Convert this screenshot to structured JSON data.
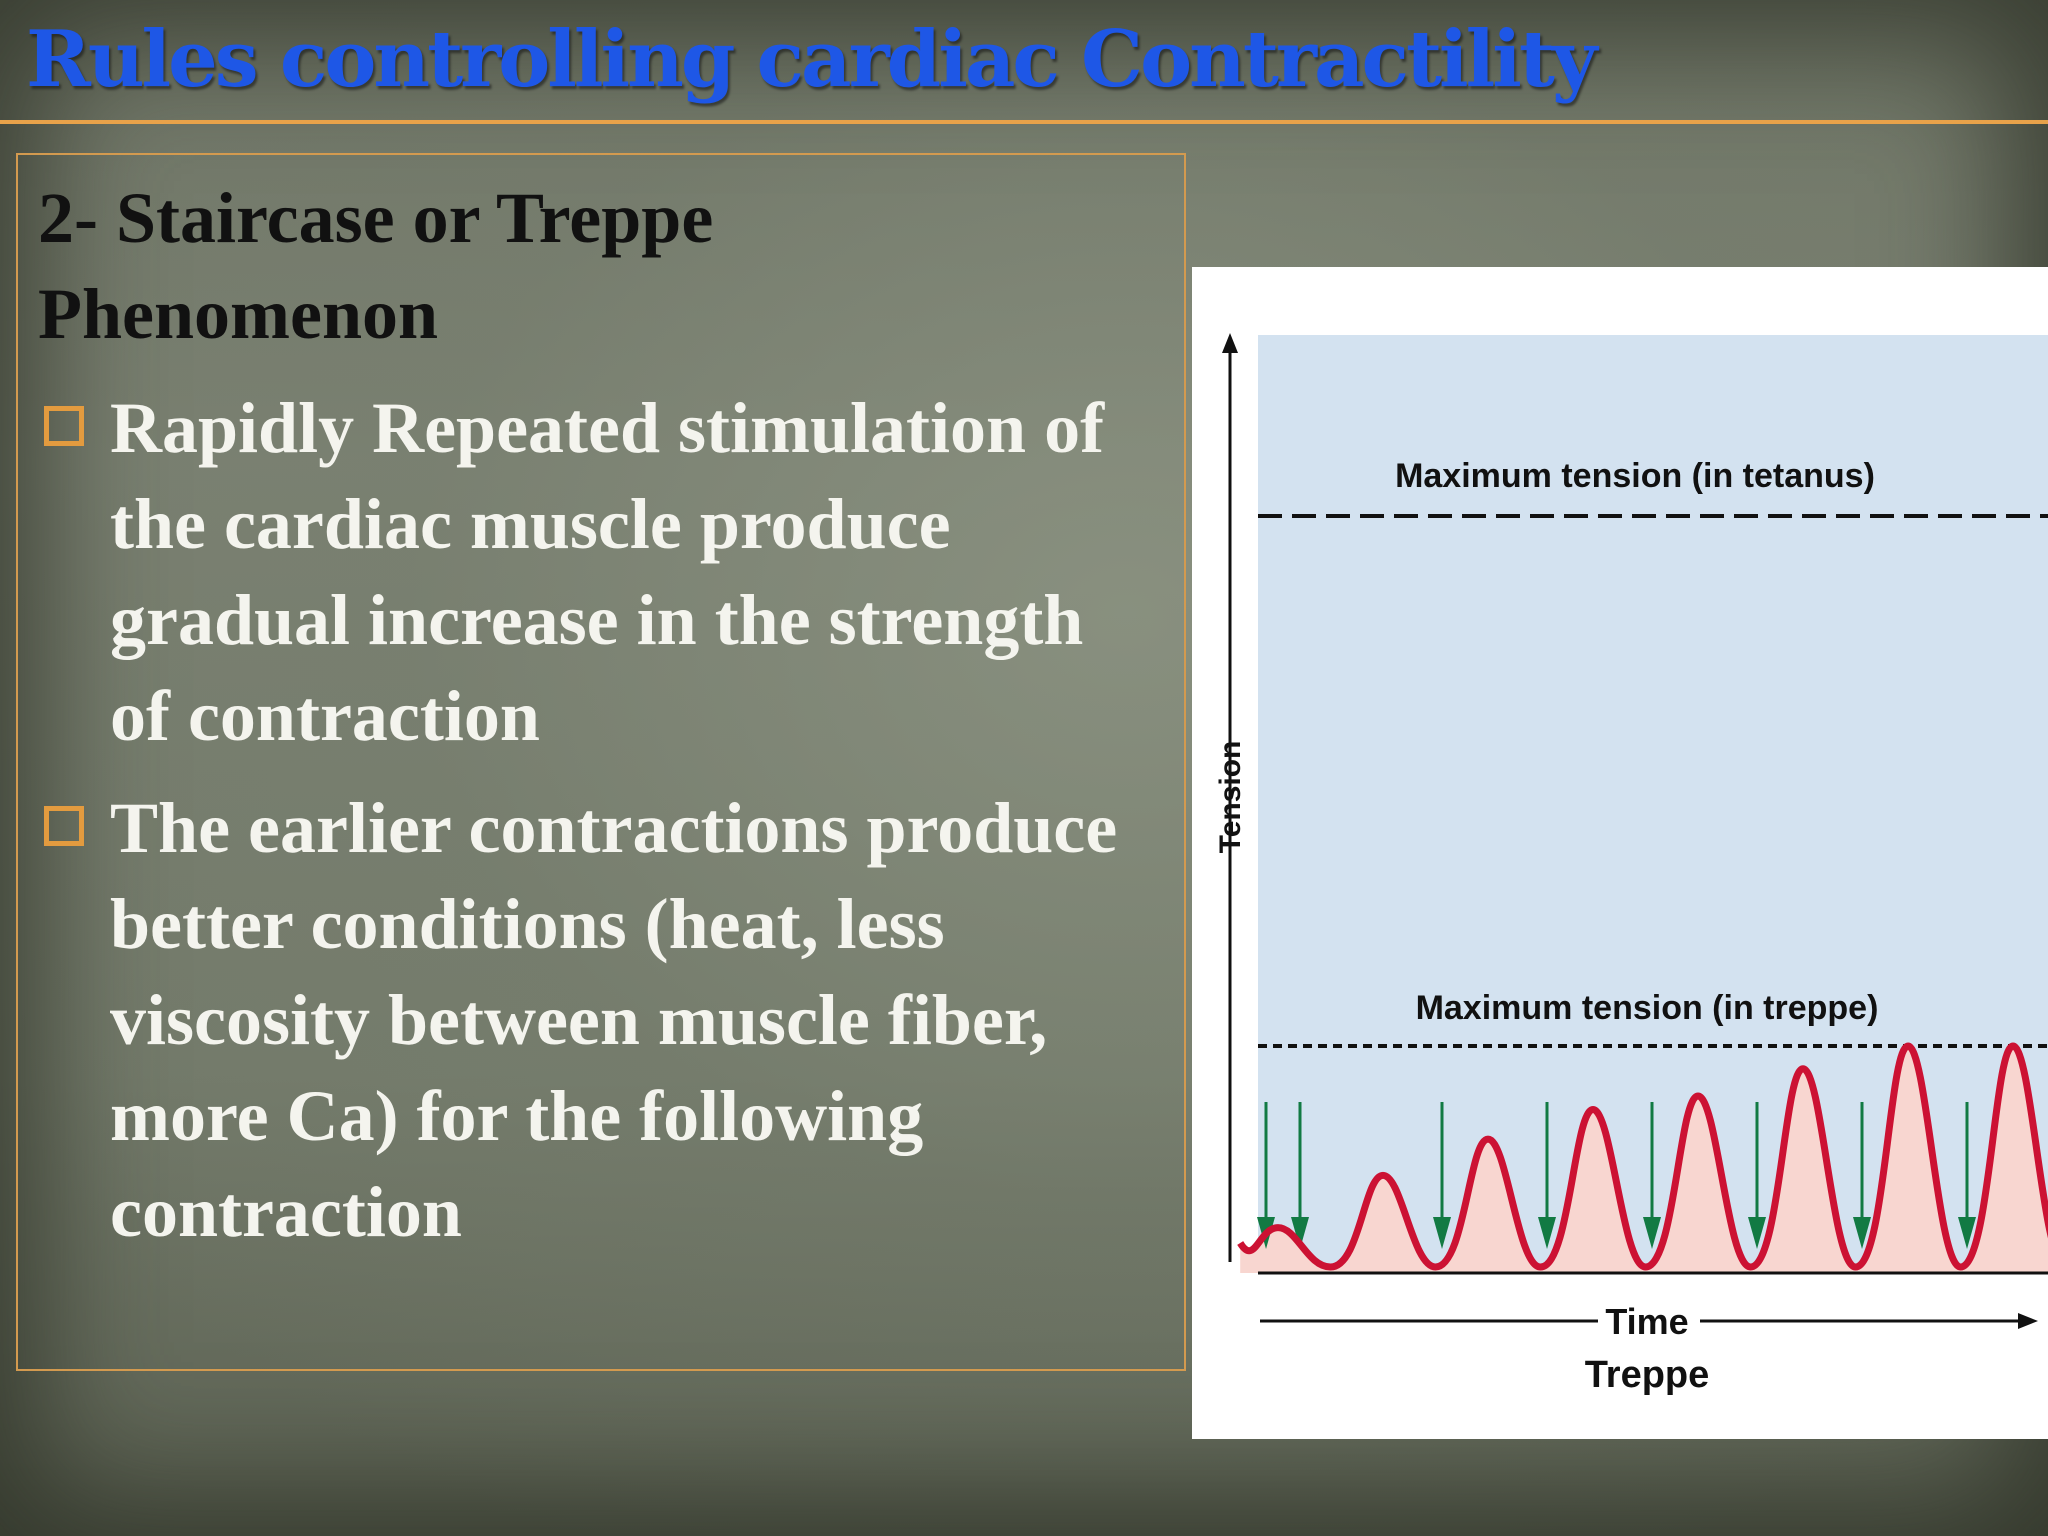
{
  "slide": {
    "title": "Rules controlling cardiac Contractility",
    "subtitle": "2- Staircase or Treppe Phenomenon",
    "bullets": [
      "Rapidly Repeated stimulation of the cardiac muscle produce gradual increase in the strength of contraction",
      "The earlier contractions produce better conditions (heat, less viscosity between muscle fiber, more Ca) for the following contraction"
    ]
  },
  "figure": {
    "caption": "Treppe",
    "xlabel": "Time",
    "ylabel": "Tension",
    "label_tetanus": "Maximum tension (in tetanus)",
    "label_treppe": "Maximum tension (in treppe)",
    "colors": {
      "panel": "#d3e2f0",
      "twitch_line": "#cc1233",
      "twitch_fill": "#f8d6d0",
      "stimulus_arrow": "#127a43",
      "dashed_line": "#111111"
    },
    "icons": [
      "stimulus-arrow-icon"
    ]
  },
  "chart_data": {
    "type": "line",
    "title": "Treppe",
    "xlabel": "Time",
    "ylabel": "Tension",
    "reference_lines": [
      {
        "label": "Maximum tension (in tetanus)",
        "style": "dashed"
      },
      {
        "label": "Maximum tension (in treppe)",
        "style": "dashed"
      }
    ],
    "series": [
      {
        "values": [
          0.2,
          0.43,
          0.59,
          0.72,
          0.78,
          0.9,
          1.0,
          1.0,
          1.0
        ]
      }
    ],
    "stimuli_count": 9,
    "ylim": [
      0,
      1
    ],
    "grid": false
  }
}
